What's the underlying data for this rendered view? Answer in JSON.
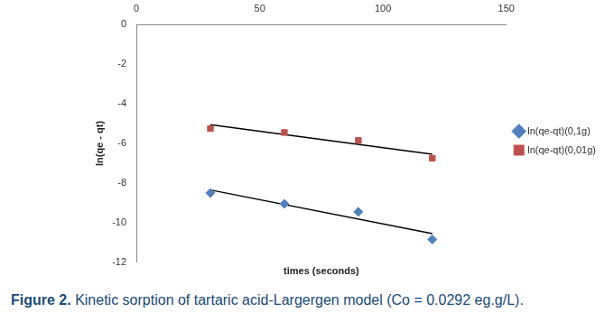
{
  "chart_data": {
    "type": "scatter",
    "figure_label": "Figure 2.",
    "title": "Kinetic sorption of tartaric acid-Largergen model (Co = 0.0292 eg.g/L).",
    "x_label": "times (seconds)",
    "y_label": "ln(qe - qt)",
    "xlim": [
      0,
      150
    ],
    "xticks": [
      0,
      50,
      100,
      150
    ],
    "ylim": [
      -12,
      0
    ],
    "yticks": [
      -12,
      -10,
      -8,
      -6,
      -4,
      -2,
      0
    ],
    "grid": false,
    "legend": "right",
    "series": [
      {
        "name": "ln(qe-qt)(0,1g)",
        "color": "#4f81bd",
        "marker": "diamond",
        "x": [
          30,
          60,
          90,
          120
        ],
        "values": [
          -8.5,
          -9.05,
          -9.45,
          -10.85
        ],
        "trendline": {
          "x": [
            30,
            120
          ],
          "values": [
            -8.35,
            -10.55
          ],
          "color": "#000000"
        }
      },
      {
        "name": "ln(qe-qt)(0,01g)",
        "color": "#c0504d",
        "marker": "square",
        "x": [
          30,
          60,
          90,
          120
        ],
        "values": [
          -5.25,
          -5.45,
          -5.85,
          -6.75
        ],
        "trendline": {
          "x": [
            30,
            120
          ],
          "values": [
            -5.05,
            -6.55
          ],
          "color": "#000000"
        }
      }
    ]
  }
}
